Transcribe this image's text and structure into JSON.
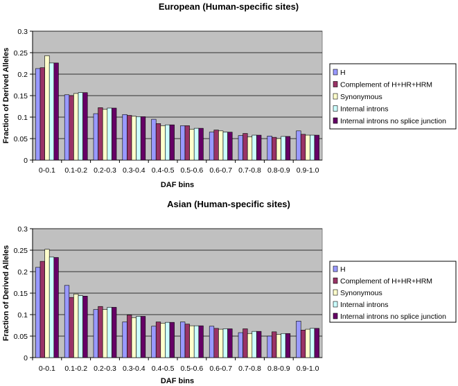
{
  "chart_data": [
    {
      "type": "bar",
      "title": "European (Human-specific sites)",
      "xlabel": "DAF bins",
      "ylabel": "Fraction of Derived Alleles",
      "ylim": [
        0,
        0.3
      ],
      "yticks": [
        "0",
        "0.05",
        "0.1",
        "0.15",
        "0.2",
        "0.25",
        "0.3"
      ],
      "grid": true,
      "legend_position": "right",
      "categories": [
        "0-0.1",
        "0.1-0.2",
        "0.2-0.3",
        "0.3-0.4",
        "0.4-0.5",
        "0.5-0.6",
        "0.6-0.7",
        "0.7-0.8",
        "0.8-0.9",
        "0.9-1.0"
      ],
      "series": [
        {
          "name": "H",
          "color": "#9999ff",
          "values": [
            0.213,
            0.152,
            0.108,
            0.106,
            0.095,
            0.08,
            0.065,
            0.057,
            0.056,
            0.068
          ]
        },
        {
          "name": "Complement of H+HR+HRM",
          "color": "#993366",
          "values": [
            0.215,
            0.15,
            0.122,
            0.104,
            0.085,
            0.08,
            0.07,
            0.062,
            0.053,
            0.06
          ]
        },
        {
          "name": "Synonymous",
          "color": "#ffffcc",
          "values": [
            0.243,
            0.155,
            0.118,
            0.102,
            0.08,
            0.072,
            0.068,
            0.054,
            0.05,
            0.058
          ]
        },
        {
          "name": "Internal introns",
          "color": "#ccffff",
          "values": [
            0.226,
            0.157,
            0.121,
            0.101,
            0.082,
            0.074,
            0.065,
            0.058,
            0.055,
            0.058
          ]
        },
        {
          "name": "Internal introns no splice junction",
          "color": "#660066",
          "values": [
            0.226,
            0.157,
            0.121,
            0.101,
            0.082,
            0.074,
            0.065,
            0.058,
            0.055,
            0.058
          ]
        }
      ]
    },
    {
      "type": "bar",
      "title": "Asian (Human-specific sites)",
      "xlabel": "DAF bins",
      "ylabel": "Fraction of Derived Alleles",
      "ylim": [
        0,
        0.3
      ],
      "yticks": [
        "0",
        "0.05",
        "0.1",
        "0.15",
        "0.2",
        "0.25",
        "0.3"
      ],
      "grid": true,
      "legend_position": "right",
      "categories": [
        "0-0.1",
        "0.1-0.2",
        "0.2-0.3",
        "0.3-0.4",
        "0.4-0.5",
        "0.5-0.6",
        "0.6-0.7",
        "0.7-0.8",
        "0.8-0.9",
        "0.9-1.0"
      ],
      "series": [
        {
          "name": "H",
          "color": "#9999ff",
          "values": [
            0.21,
            0.168,
            0.112,
            0.083,
            0.073,
            0.083,
            0.073,
            0.058,
            0.05,
            0.085
          ]
        },
        {
          "name": "Complement of H+HR+HRM",
          "color": "#993366",
          "values": [
            0.224,
            0.14,
            0.119,
            0.099,
            0.083,
            0.078,
            0.068,
            0.067,
            0.06,
            0.064
          ]
        },
        {
          "name": "Synonymous",
          "color": "#ffffcc",
          "values": [
            0.252,
            0.148,
            0.112,
            0.093,
            0.08,
            0.074,
            0.066,
            0.056,
            0.054,
            0.066
          ]
        },
        {
          "name": "Internal introns",
          "color": "#ccffff",
          "values": [
            0.234,
            0.144,
            0.117,
            0.096,
            0.082,
            0.074,
            0.067,
            0.061,
            0.056,
            0.068
          ]
        },
        {
          "name": "Internal introns no splice junction",
          "color": "#660066",
          "values": [
            0.233,
            0.143,
            0.117,
            0.096,
            0.082,
            0.074,
            0.067,
            0.061,
            0.056,
            0.068
          ]
        }
      ]
    }
  ],
  "colors": {
    "plot_background": "#c0c0c0",
    "gridline": "#000000",
    "bar_outline": "#000000"
  }
}
